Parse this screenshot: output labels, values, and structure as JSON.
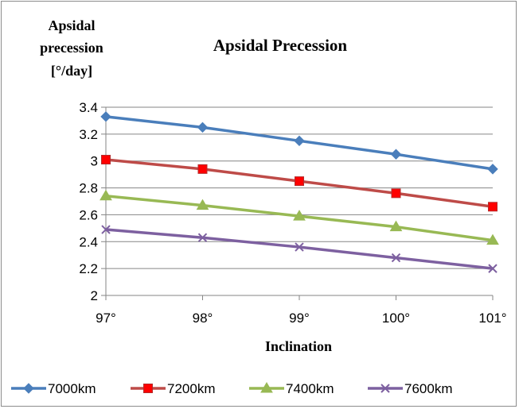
{
  "chart_data": {
    "type": "line",
    "title": "Apsidal  Precession",
    "ylabel_lines": [
      "Apsidal",
      "precession",
      "[°/day]"
    ],
    "xlabel": "Inclination",
    "categories": [
      "97°",
      "98°",
      "99°",
      "100°",
      "101°"
    ],
    "ylim": [
      2,
      3.4
    ],
    "yticks": [
      "2",
      "2.2",
      "2.4",
      "2.6",
      "2.8",
      "3",
      "3.2",
      "3.4"
    ],
    "grid": "horizontal",
    "legend_position": "bottom",
    "series": [
      {
        "name": "7000km",
        "values": [
          3.33,
          3.25,
          3.15,
          3.05,
          2.94
        ],
        "color": "#4a7ebb",
        "marker": "diamond"
      },
      {
        "name": "7200km",
        "values": [
          3.01,
          2.94,
          2.85,
          2.76,
          2.66
        ],
        "color": "#be4b48",
        "marker": "square"
      },
      {
        "name": "7400km",
        "values": [
          2.74,
          2.67,
          2.59,
          2.51,
          2.41
        ],
        "color": "#98b954",
        "marker": "triangle"
      },
      {
        "name": "7600km",
        "values": [
          2.49,
          2.43,
          2.36,
          2.28,
          2.2
        ],
        "color": "#7d60a0",
        "marker": "x"
      }
    ]
  }
}
